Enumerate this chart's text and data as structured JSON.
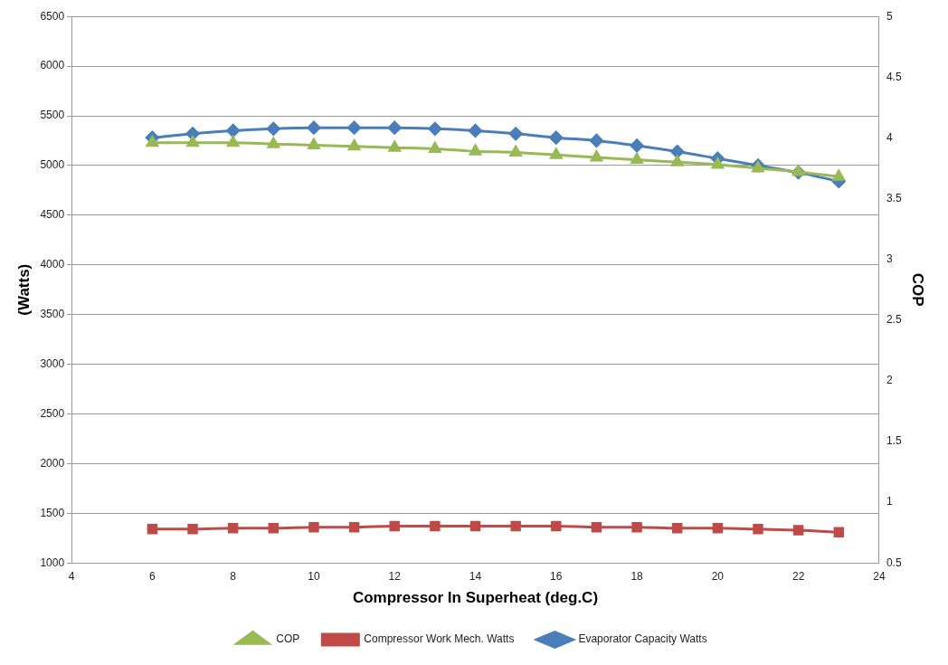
{
  "chart_data": {
    "type": "line",
    "xlabel": "Compressor In Superheat (deg.C)",
    "ylabel": "(Watts)",
    "y2label": "COP",
    "x": [
      6,
      7,
      8,
      9,
      10,
      11,
      12,
      13,
      14,
      15,
      16,
      17,
      18,
      19,
      20,
      21,
      22,
      23
    ],
    "series": [
      {
        "name": "Evaporator Capacity Watts",
        "color": "#4a7ebb",
        "marker": "diamond",
        "values": [
          5280,
          5320,
          5350,
          5370,
          5380,
          5380,
          5380,
          5370,
          5350,
          5320,
          5280,
          5250,
          5200,
          5140,
          5070,
          5000,
          4930,
          4840
        ]
      },
      {
        "name": "Compressor Work Mech. Watts",
        "color": "#be4b48",
        "marker": "square",
        "values": [
          1340,
          1340,
          1350,
          1350,
          1360,
          1360,
          1370,
          1370,
          1370,
          1370,
          1370,
          1360,
          1360,
          1350,
          1350,
          1340,
          1330,
          1310
        ]
      },
      {
        "name": "COP",
        "color": "#98b954",
        "marker": "triangle",
        "axis": "y2",
        "values": [
          3.96,
          3.96,
          3.96,
          3.95,
          3.94,
          3.93,
          3.92,
          3.91,
          3.89,
          3.88,
          3.86,
          3.84,
          3.82,
          3.8,
          3.78,
          3.75,
          3.72,
          3.68
        ]
      }
    ],
    "xlim": [
      4,
      24
    ],
    "xticks": [
      4,
      6,
      8,
      10,
      12,
      14,
      16,
      18,
      20,
      22,
      24
    ],
    "ylim": [
      1000,
      6500
    ],
    "yticks": [
      1000,
      1500,
      2000,
      2500,
      3000,
      3500,
      4000,
      4500,
      5000,
      5500,
      6000,
      6500
    ],
    "y2lim": [
      0.5,
      5
    ],
    "y2ticks": [
      0.5,
      1,
      1.5,
      2,
      2.5,
      3,
      3.5,
      4,
      4.5,
      5
    ],
    "grid": "y",
    "legend": "bottom"
  }
}
